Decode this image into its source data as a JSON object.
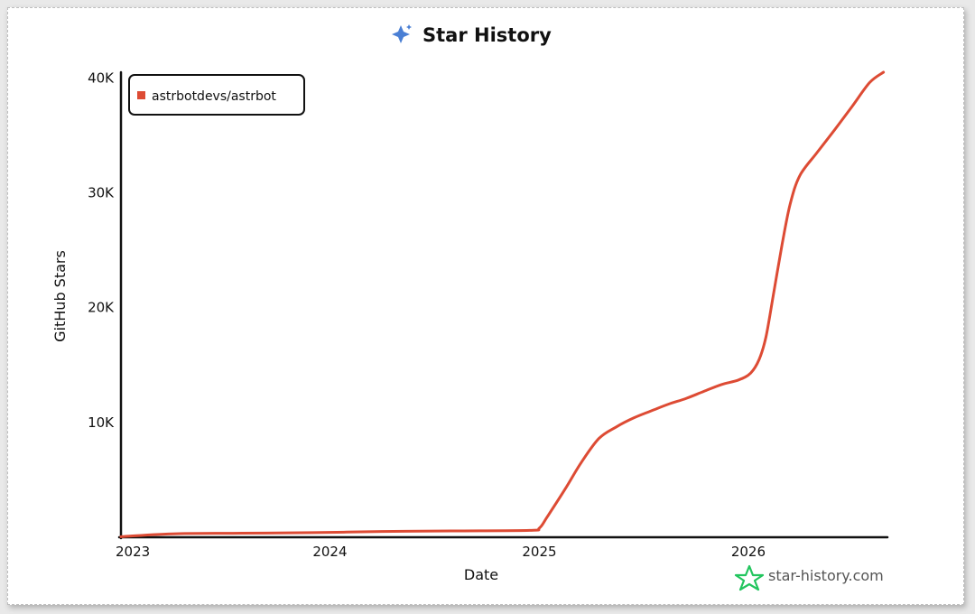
{
  "chart_data": {
    "type": "line",
    "title": "Star History",
    "xlabel": "Date",
    "ylabel": "GitHub Stars",
    "x_tick_labels": [
      "2023",
      "2024",
      "2025",
      "2026"
    ],
    "y_tick_labels": [
      "10K",
      "20K",
      "30K",
      "40K"
    ],
    "y_ticks": [
      10000,
      20000,
      30000,
      40000
    ],
    "ylim": [
      0,
      40500
    ],
    "xlim": [
      "2023-01-01",
      "2026-09-01"
    ],
    "grid": false,
    "legend_placement": "top-left",
    "series": [
      {
        "name": "astrbotdevs/astrbot",
        "color": "#dd4b34",
        "x": [
          "2023-01-01",
          "2023-04-01",
          "2023-08-01",
          "2023-12-01",
          "2024-04-01",
          "2024-08-01",
          "2024-12-15",
          "2025-01-01",
          "2025-01-15",
          "2025-02-15",
          "2025-03-15",
          "2025-04-15",
          "2025-05-15",
          "2025-06-15",
          "2025-07-15",
          "2025-08-15",
          "2025-09-15",
          "2025-10-15",
          "2025-11-15",
          "2025-12-15",
          "2026-01-05",
          "2026-01-20",
          "2026-02-01",
          "2026-02-15",
          "2026-03-01",
          "2026-03-15",
          "2026-04-01",
          "2026-05-01",
          "2026-06-01",
          "2026-07-01",
          "2026-08-01",
          "2026-08-25"
        ],
        "y": [
          50,
          300,
          350,
          400,
          500,
          550,
          600,
          800,
          1800,
          4200,
          6500,
          8600,
          9600,
          10400,
          11000,
          11600,
          12100,
          12700,
          13300,
          13700,
          14300,
          15500,
          17500,
          21500,
          25500,
          29000,
          31500,
          33500,
          35500,
          37500,
          39600,
          40500
        ]
      }
    ]
  },
  "watermark": {
    "text": "star-history.com",
    "icon": "star-icon",
    "color": "#22c55e"
  },
  "title_icon": "sparkle-icon",
  "title_icon_color": "#4a7fd4"
}
